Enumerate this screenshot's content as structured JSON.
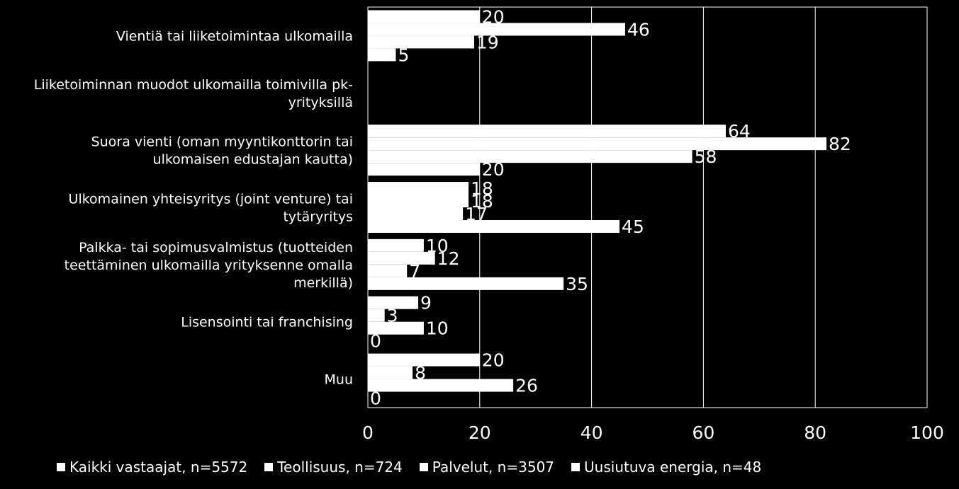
{
  "chart_data": {
    "type": "bar",
    "orientation": "horizontal",
    "categories": [
      [
        "Vientiä tai liiketoimintaa ulkomailla"
      ],
      [
        "Liiketoiminnan muodot ulkomailla toimivilla pk-",
        "yrityksillä"
      ],
      [
        "Suora vienti (oman myyntikonttorin tai",
        "ulkomaisen edustajan kautta)"
      ],
      [
        "Ulkomainen yhteisyritys (joint venture) tai",
        "tytäryritys"
      ],
      [
        "Palkka- tai sopimusvalmistus (tuotteiden",
        "teettäminen ulkomailla yrityksenne omalla",
        "merkillä)"
      ],
      [
        "Lisensointi tai franchising"
      ],
      [
        "Muu"
      ]
    ],
    "series": [
      {
        "name": "Kaikki vastaajat, n=5572",
        "color": "#ffffff",
        "values": [
          20,
          null,
          64,
          18,
          10,
          9,
          20
        ]
      },
      {
        "name": "Teollisuus, n=724",
        "color": "#ffffff",
        "values": [
          46,
          null,
          82,
          18,
          12,
          3,
          8
        ]
      },
      {
        "name": "Palvelut, n=3507",
        "color": "#ffffff",
        "values": [
          19,
          null,
          58,
          17,
          7,
          10,
          26
        ]
      },
      {
        "name": "Uusiutuva energia, n=48",
        "color": "#ffffff",
        "values": [
          5,
          null,
          20,
          45,
          35,
          0,
          0
        ]
      }
    ],
    "xlim": [
      0,
      100
    ],
    "xticks": [
      0,
      20,
      40,
      60,
      80,
      100
    ],
    "grid": true,
    "legend_position": "bottom",
    "title": "",
    "xlabel": "",
    "ylabel": ""
  },
  "colors": {
    "background": "#000000",
    "bar": "#ffffff",
    "text": "#ffffff",
    "grid": "#ffffff"
  }
}
